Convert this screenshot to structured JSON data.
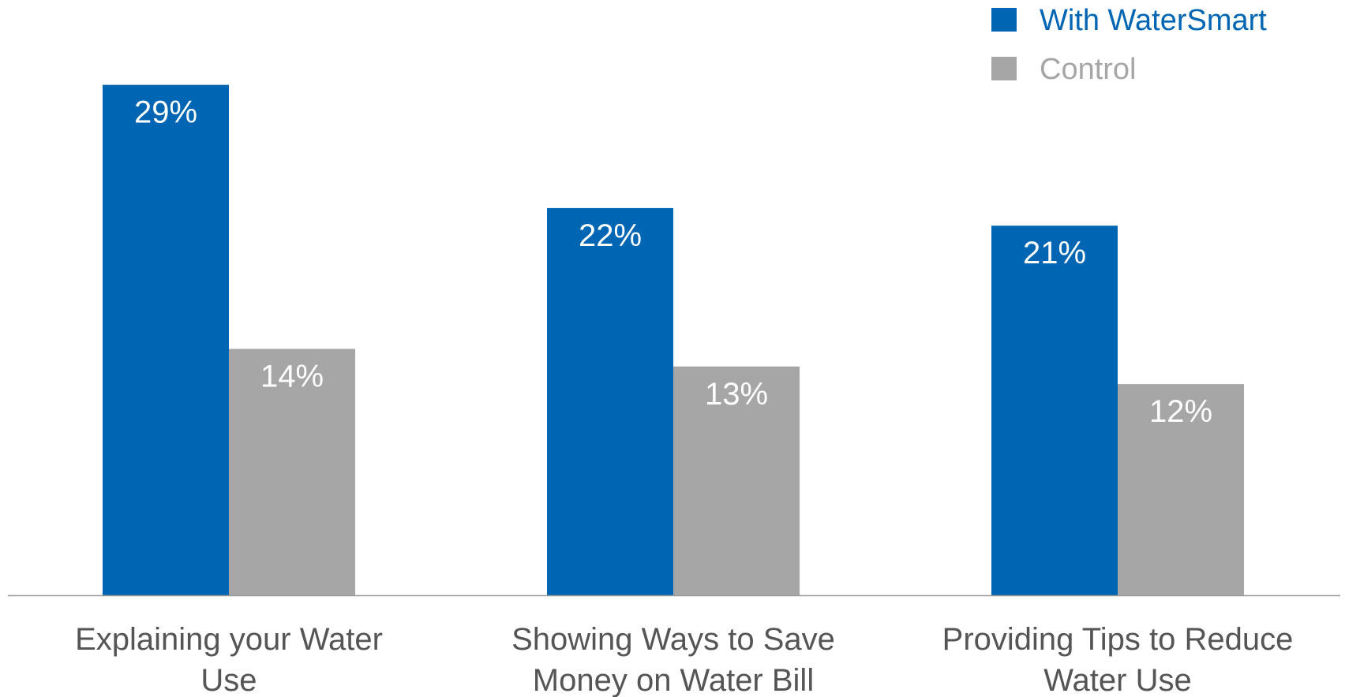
{
  "chart_data": {
    "type": "bar",
    "categories": [
      [
        "Explaining your Water",
        "Use"
      ],
      [
        "Showing Ways to Save",
        "Money on Water Bill"
      ],
      [
        "Providing Tips to Reduce",
        "Water Use"
      ]
    ],
    "series": [
      {
        "name": "With WaterSmart",
        "values": [
          29,
          22,
          21
        ],
        "labels": [
          "29%",
          "22%",
          "21%"
        ],
        "color": "#0066b3"
      },
      {
        "name": "Control",
        "values": [
          14,
          13,
          12
        ],
        "labels": [
          "14%",
          "13%",
          "12%"
        ],
        "color": "#a6a6a6"
      }
    ],
    "ylim": [
      0,
      31
    ],
    "grid": false,
    "legend": "top-right",
    "legend_text_colors": [
      "#0066b3",
      "#a6a6a6"
    ],
    "axis_color": "#999999",
    "category_text_color": "#555555"
  }
}
